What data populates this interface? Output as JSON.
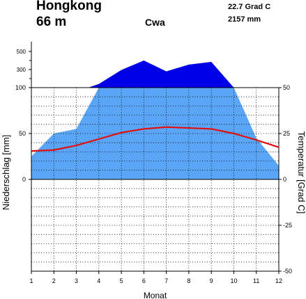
{
  "header": {
    "station": "Hongkong",
    "elevation": "66 m",
    "climate_class": "Cwa",
    "annual_temperature": "22.7 Grad C",
    "annual_precipitation": "2157 mm"
  },
  "chart_data": {
    "type": "climate-diagram",
    "title": "Hongkong",
    "xlabel": "Monat",
    "ylabel_left": "Niederschlag [mm]",
    "ylabel_right": "Temperatur [Grad C]",
    "categories": [
      "1",
      "2",
      "3",
      "4",
      "5",
      "6",
      "7",
      "8",
      "9",
      "10",
      "11",
      "12"
    ],
    "series": [
      {
        "name": "Niederschlag [mm]",
        "values": [
          25,
          50,
          55,
          140,
          295,
          400,
          280,
          355,
          385,
          100,
          45,
          15
        ],
        "color": "#5aa5f5",
        "excess_color": "#0000e6"
      },
      {
        "name": "Temperatur [Grad C]",
        "values": [
          15.5,
          16,
          18.5,
          22,
          25.5,
          27.5,
          28.5,
          28,
          27.5,
          25,
          21.5,
          17.5
        ],
        "color": "#e01010"
      }
    ],
    "precip_ticks_left": [
      "500",
      "300",
      "100",
      "50",
      "0"
    ],
    "temp_ticks_right": [
      "50",
      "25",
      "0",
      "-25",
      "-50"
    ],
    "x_ticks": [
      "1",
      "2",
      "3",
      "4",
      "5",
      "6",
      "7",
      "8",
      "9",
      "10",
      "11",
      "12"
    ],
    "ylim_temperature": [
      -50,
      50
    ],
    "ylim_precipitation_linear": [
      0,
      100
    ],
    "precipitation_scale_above_100": "compressed",
    "precipitation_max_shown": 500,
    "grid": true
  }
}
